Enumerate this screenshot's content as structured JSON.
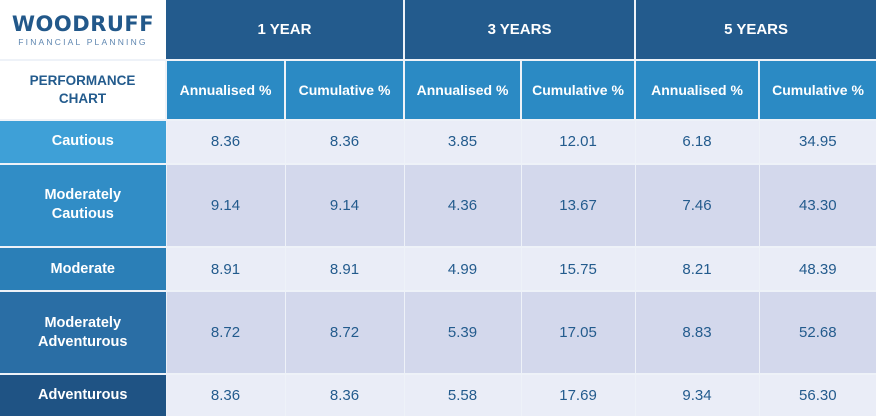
{
  "brand": {
    "name": "WOODRUFF",
    "tagline": "FINANCIAL PLANNING"
  },
  "chart_data": {
    "type": "table",
    "title": "PERFORMANCE CHART",
    "periods": [
      "1 YEAR",
      "3 YEARS",
      "5 YEARS"
    ],
    "columns": [
      "Annualised %",
      "Cumulative %",
      "Annualised %",
      "Cumulative %",
      "Annualised %",
      "Cumulative %"
    ],
    "rows": [
      {
        "label": "Cautious",
        "values": [
          "8.36",
          "8.36",
          "3.85",
          "12.01",
          "6.18",
          "34.95"
        ]
      },
      {
        "label": "Moderately Cautious",
        "values": [
          "9.14",
          "9.14",
          "4.36",
          "13.67",
          "7.46",
          "43.30"
        ]
      },
      {
        "label": "Moderate",
        "values": [
          "8.91",
          "8.91",
          "4.99",
          "15.75",
          "8.21",
          "48.39"
        ]
      },
      {
        "label": "Moderately Adventurous",
        "values": [
          "8.72",
          "8.72",
          "5.39",
          "17.05",
          "8.83",
          "52.68"
        ]
      },
      {
        "label": "Adventurous",
        "values": [
          "8.36",
          "8.36",
          "5.58",
          "17.69",
          "9.34",
          "56.30"
        ]
      }
    ]
  }
}
